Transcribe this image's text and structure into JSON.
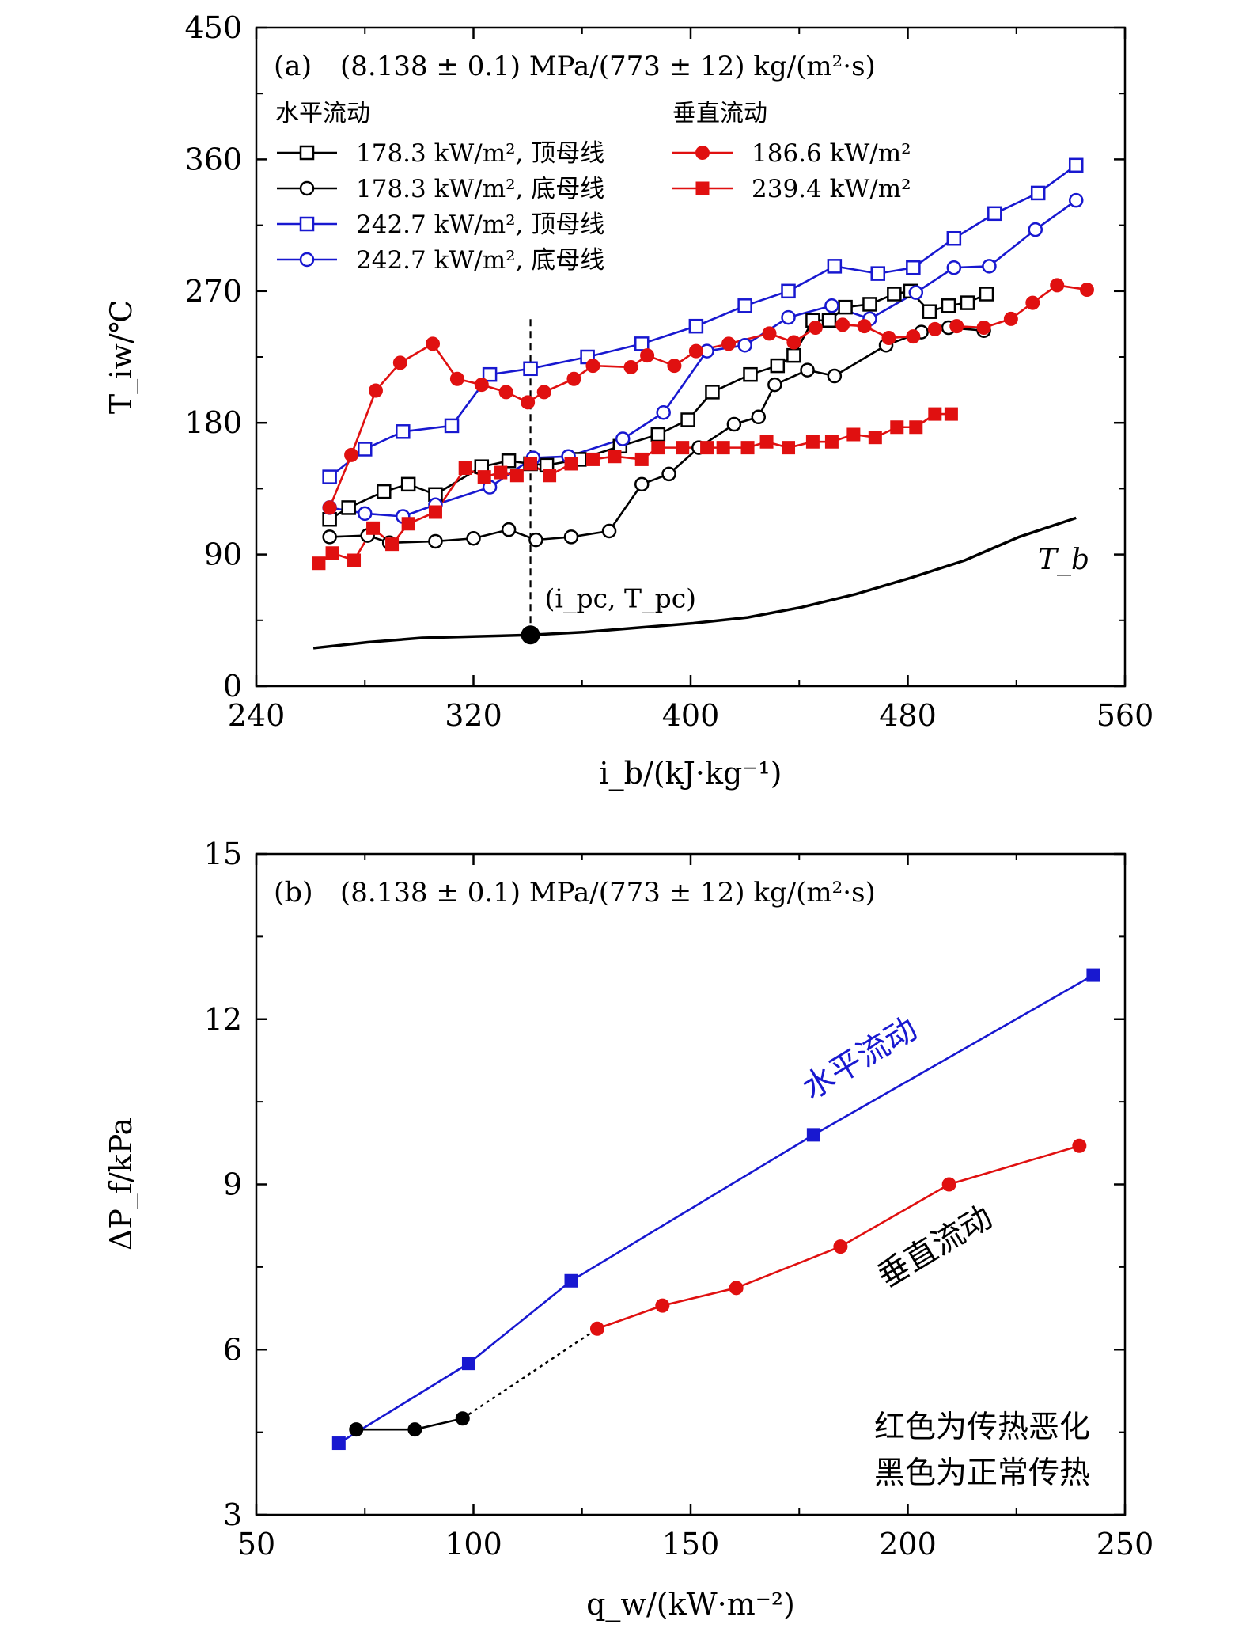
{
  "chart_data": [
    {
      "type": "line",
      "panel_label": "(a)",
      "condition": "(8.138 ± 0.1) MPa/(773 ± 12) kg/(m²·s)",
      "xlabel": "i_b/(kJ·kg⁻¹)",
      "ylabel": "T_iw/℃",
      "xlim": [
        240,
        560
      ],
      "ylim": [
        0,
        450
      ],
      "xticks": [
        240,
        320,
        400,
        480,
        560
      ],
      "yticks": [
        0,
        90,
        180,
        270,
        360,
        450
      ],
      "legend_headers": {
        "horizontal": "水平流动",
        "vertical": "垂直流动"
      },
      "series": [
        {
          "name": "178.3 kW/m², 顶母线",
          "group": "horizontal",
          "color": "#000000",
          "marker": "open-square",
          "x": [
            267,
            274,
            287,
            296,
            306,
            323,
            333,
            341,
            347,
            359,
            374,
            388,
            399,
            408,
            422,
            432,
            438,
            445,
            451,
            457,
            466,
            475,
            481,
            488,
            495,
            502,
            509
          ],
          "y": [
            114,
            122,
            133,
            138,
            131,
            150,
            154,
            152,
            151,
            155,
            164,
            172,
            182,
            201,
            213,
            219,
            226,
            250,
            250,
            259,
            261,
            268,
            270,
            256,
            260,
            262,
            268
          ]
        },
        {
          "name": "178.3 kW/m², 底母线",
          "group": "horizontal",
          "color": "#000000",
          "marker": "open-circle",
          "x": [
            267,
            281,
            289,
            306,
            320,
            333,
            343,
            356,
            370,
            382,
            392,
            403,
            416,
            425,
            431,
            443,
            453,
            472,
            485,
            495,
            508
          ],
          "y": [
            102,
            103,
            98,
            99,
            101,
            107,
            100,
            102,
            106,
            138,
            145,
            163,
            179,
            184,
            206,
            216,
            212,
            233,
            242,
            245,
            243
          ]
        },
        {
          "name": "242.7 kW/m², 顶母线",
          "group": "horizontal",
          "color": "#1818d0",
          "marker": "open-square",
          "x": [
            267,
            280,
            294,
            312,
            326,
            341,
            362,
            382,
            402,
            420,
            436,
            453,
            469,
            482,
            497,
            512,
            528,
            542
          ],
          "y": [
            143,
            162,
            174,
            178,
            213,
            217,
            225,
            234,
            246,
            260,
            270,
            287,
            282,
            286,
            306,
            323,
            337,
            356
          ]
        },
        {
          "name": "242.7 kW/m², 底母线",
          "group": "horizontal",
          "color": "#1818d0",
          "marker": "open-circle",
          "x": [
            267,
            280,
            294,
            306,
            326,
            342,
            355,
            375,
            390,
            406,
            420,
            436,
            452,
            466,
            483,
            497,
            510,
            527,
            542
          ],
          "y": [
            122,
            118,
            116,
            124,
            136,
            156,
            157,
            169,
            187,
            229,
            233,
            252,
            260,
            251,
            269,
            286,
            287,
            312,
            332
          ]
        },
        {
          "name": "186.6 kW/m²",
          "group": "vertical",
          "color": "#e01010",
          "marker": "filled-circle",
          "x": [
            267,
            275,
            284,
            293,
            305,
            314,
            323,
            332,
            340,
            346,
            357,
            364,
            378,
            384,
            394,
            402,
            414,
            429,
            438,
            446,
            456,
            464,
            473,
            482,
            490,
            498,
            508,
            518,
            526,
            535,
            546
          ],
          "y": [
            122,
            158,
            202,
            221,
            234,
            210,
            206,
            201,
            194,
            201,
            210,
            219,
            218,
            226,
            219,
            229,
            234,
            241,
            235,
            245,
            247,
            246,
            238,
            239,
            244,
            246,
            245,
            251,
            262,
            274,
            271
          ]
        },
        {
          "name": "239.4 kW/m²",
          "group": "vertical",
          "color": "#e01010",
          "marker": "filled-square",
          "x": [
            263,
            268,
            276,
            283,
            290,
            296,
            306,
            317,
            324,
            330,
            336,
            341,
            348,
            356,
            364,
            372,
            382,
            388,
            397,
            406,
            412,
            421,
            428,
            436,
            445,
            452,
            460,
            468,
            476,
            483,
            490,
            496
          ],
          "y": [
            84,
            91,
            86,
            108,
            97,
            111,
            119,
            149,
            143,
            146,
            144,
            152,
            144,
            152,
            155,
            157,
            155,
            163,
            163,
            163,
            163,
            163,
            167,
            163,
            167,
            167,
            172,
            170,
            177,
            177,
            186,
            186
          ]
        },
        {
          "name": "T_b",
          "group": "bulk",
          "color": "#000000",
          "marker": "none",
          "x": [
            261,
            281,
            301,
            321,
            341,
            361,
            381,
            401,
            421,
            441,
            461,
            481,
            501,
            521,
            542
          ],
          "y": [
            26,
            30,
            33,
            34,
            35,
            37,
            40,
            43,
            47,
            54,
            63,
            74,
            86,
            102,
            115
          ]
        }
      ],
      "pseudocritical_point": {
        "x": 341,
        "y": 35,
        "label": "(i_pc, T_pc)"
      },
      "bulk_label": "T_b"
    },
    {
      "type": "line",
      "panel_label": "(b)",
      "condition": "(8.138 ± 0.1) MPa/(773 ± 12) kg/(m²·s)",
      "xlabel": "q_w/(kW·m⁻²)",
      "ylabel": "ΔP_f/kPa",
      "xlim": [
        50,
        250
      ],
      "ylim": [
        3,
        15
      ],
      "xticks": [
        50,
        100,
        150,
        200,
        250
      ],
      "yticks": [
        3,
        6,
        9,
        12,
        15
      ],
      "series": [
        {
          "name": "水平流动",
          "color": "#1818d0",
          "marker": "filled-square",
          "x": [
            69,
            98.9,
            122.5,
            178.3,
            242.7
          ],
          "y": [
            4.3,
            5.75,
            7.25,
            9.9,
            12.8
          ]
        },
        {
          "name": "垂直流动 正常传热",
          "color": "#000000",
          "marker": "filled-circle",
          "x": [
            73,
            86.5,
            97.5
          ],
          "y": [
            4.55,
            4.55,
            4.75
          ]
        },
        {
          "name": "垂直流动 传热恶化",
          "color": "#e01010",
          "marker": "filled-circle",
          "x": [
            128.5,
            143.5,
            160.5,
            184.5,
            209.5,
            239.5
          ],
          "y": [
            6.38,
            6.8,
            7.12,
            7.87,
            9.0,
            9.7
          ]
        }
      ],
      "connector": {
        "x": [
          97.5,
          128.5
        ],
        "y": [
          4.75,
          6.38
        ]
      },
      "annotations": {
        "horizontal": "水平流动",
        "vertical": "垂直流动",
        "note_line1": "红色为传热恶化",
        "note_line2": "黑色为正常传热"
      }
    }
  ]
}
